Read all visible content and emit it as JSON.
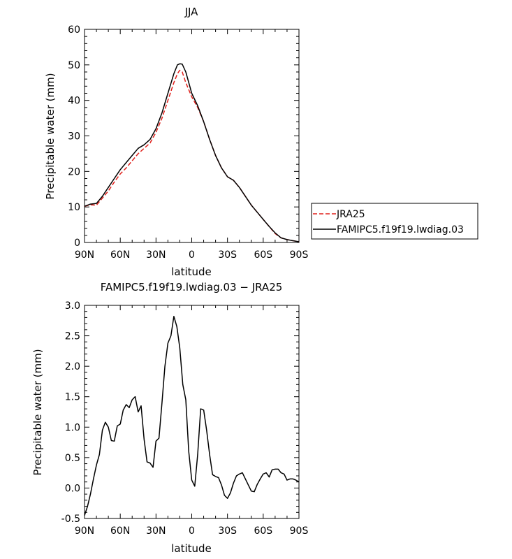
{
  "chart_data": [
    {
      "type": "line",
      "title": "JJA",
      "xlabel": "latitude",
      "ylabel": "Precipitable water (mm)",
      "xlim": [
        90,
        -90
      ],
      "ylim": [
        0,
        60
      ],
      "xticks": [
        90,
        60,
        30,
        0,
        -30,
        -60,
        -90
      ],
      "xtick_labels": [
        "90N",
        "60N",
        "30N",
        "0",
        "30S",
        "60S",
        "90S"
      ],
      "yticks": [
        0,
        10,
        20,
        30,
        40,
        50,
        60
      ],
      "ytick_labels": [
        "0",
        "10",
        "20",
        "30",
        "40",
        "50",
        "60"
      ],
      "legend": "right",
      "series": [
        {
          "name": "JRA25",
          "color": "#e0201b",
          "style": "dashed",
          "x": [
            90,
            85,
            80,
            75,
            70,
            65,
            60,
            55,
            50,
            45,
            40,
            35,
            30,
            25,
            20,
            15,
            12,
            10,
            8,
            5,
            0,
            -5,
            -10,
            -15,
            -20,
            -25,
            -30,
            -35,
            -40,
            -45,
            -50,
            -55,
            -60,
            -65,
            -70,
            -75,
            -80,
            -85,
            -90
          ],
          "y": [
            10.2,
            10.6,
            10.5,
            12.5,
            14.5,
            17,
            19.3,
            21,
            23,
            25,
            26.5,
            28,
            31,
            35,
            40,
            45,
            47.5,
            48.5,
            48,
            45,
            41,
            38,
            34,
            29,
            24.5,
            21,
            18.5,
            17.5,
            15.5,
            13,
            10.5,
            8.5,
            6.5,
            4.5,
            2.5,
            1.3,
            0.8,
            0.5,
            0.2
          ]
        },
        {
          "name": "FAMIPC5.f19f19.lwdiag.03",
          "color": "#000000",
          "style": "solid",
          "x": [
            90,
            85,
            80,
            75,
            70,
            65,
            60,
            55,
            50,
            45,
            40,
            35,
            30,
            25,
            20,
            15,
            12,
            10,
            8,
            5,
            0,
            -5,
            -10,
            -15,
            -20,
            -25,
            -30,
            -35,
            -40,
            -45,
            -50,
            -55,
            -60,
            -65,
            -70,
            -75,
            -80,
            -85,
            -90
          ],
          "y": [
            10.2,
            10.8,
            11,
            13,
            15.5,
            18,
            20.5,
            22.5,
            24.5,
            26.5,
            27.5,
            29,
            32,
            36.5,
            42,
            47.5,
            50,
            50.3,
            50.2,
            48,
            42,
            38.5,
            34,
            29,
            24.5,
            21,
            18.5,
            17.5,
            15.5,
            13,
            10.5,
            8.5,
            6.5,
            4.5,
            2.7,
            1.3,
            0.8,
            0.5,
            0.2
          ]
        }
      ]
    },
    {
      "type": "line",
      "title": "FAMIPC5.f19f19.lwdiag.03 − JRA25",
      "xlabel": "latitude",
      "ylabel": "Precipitable water (mm)",
      "xlim": [
        90,
        -90
      ],
      "ylim": [
        -0.5,
        3.0
      ],
      "xticks": [
        90,
        60,
        30,
        0,
        -30,
        -60,
        -90
      ],
      "xtick_labels": [
        "90N",
        "60N",
        "30N",
        "0",
        "30S",
        "60S",
        "90S"
      ],
      "yticks": [
        -0.5,
        0,
        0.5,
        1,
        1.5,
        2,
        2.5,
        3
      ],
      "ytick_labels": [
        "-0.5",
        "0.0",
        "0.5",
        "1.0",
        "1.5",
        "2.0",
        "2.5",
        "3.0"
      ],
      "series": [
        {
          "color": "#000000",
          "style": "solid",
          "x": [
            90,
            87.5,
            85,
            82.5,
            80,
            77.5,
            75,
            72.5,
            70,
            67.5,
            65,
            62.5,
            60,
            57.5,
            55,
            52.5,
            50,
            47.5,
            45,
            42.5,
            40,
            37.5,
            35,
            32.5,
            30,
            27.5,
            25,
            22.5,
            20,
            17.5,
            15,
            12.5,
            10,
            7.5,
            5,
            2.5,
            0,
            -2.5,
            -5,
            -7.5,
            -10,
            -12.5,
            -15,
            -17.5,
            -20,
            -22.5,
            -25,
            -27.5,
            -30,
            -32.5,
            -35,
            -37.5,
            -40,
            -42.5,
            -45,
            -47.5,
            -50,
            -52.5,
            -55,
            -57.5,
            -60,
            -62.5,
            -65,
            -67.5,
            -70,
            -72.5,
            -75,
            -77.5,
            -80,
            -82.5,
            -85,
            -87.5,
            -90
          ],
          "y": [
            -0.45,
            -0.3,
            -0.1,
            0.15,
            0.38,
            0.55,
            0.95,
            1.08,
            1.0,
            0.78,
            0.77,
            1.02,
            1.05,
            1.28,
            1.37,
            1.32,
            1.45,
            1.5,
            1.25,
            1.35,
            0.8,
            0.43,
            0.41,
            0.34,
            0.77,
            0.82,
            1.4,
            2.0,
            2.38,
            2.5,
            2.82,
            2.65,
            2.3,
            1.7,
            1.45,
            0.6,
            0.13,
            0.03,
            0.55,
            1.3,
            1.28,
            0.95,
            0.55,
            0.22,
            0.19,
            0.17,
            0.05,
            -0.12,
            -0.17,
            -0.08,
            0.08,
            0.2,
            0.23,
            0.25,
            0.15,
            0.05,
            -0.05,
            -0.06,
            0.06,
            0.15,
            0.23,
            0.25,
            0.18,
            0.3,
            0.31,
            0.31,
            0.25,
            0.23,
            0.13,
            0.15,
            0.15,
            0.13,
            0.1
          ]
        }
      ]
    }
  ]
}
